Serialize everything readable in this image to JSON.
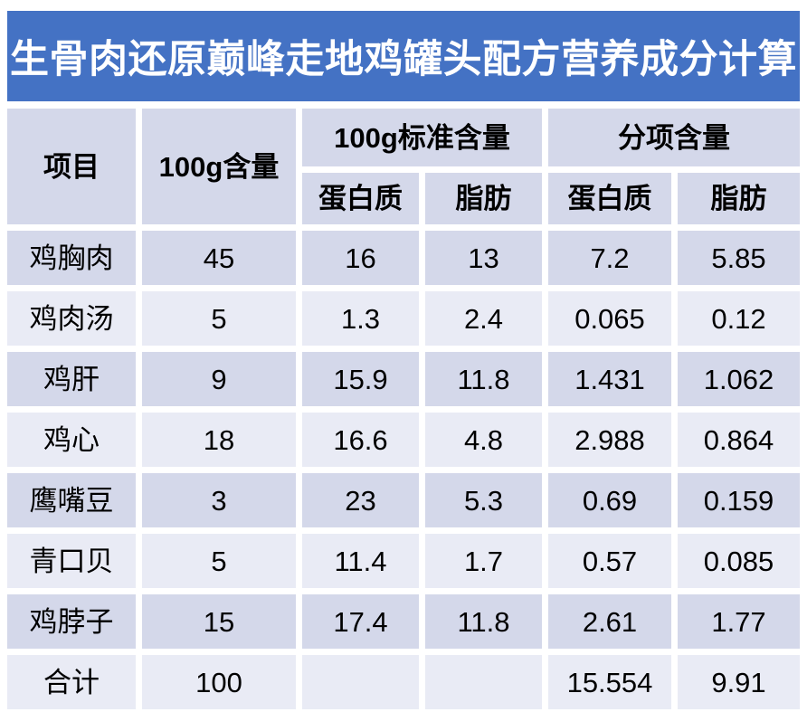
{
  "title": "生骨肉还原巅峰走地鸡罐头配方营养成分计算",
  "colors": {
    "banner": "#4472C4",
    "title_text": "#FFFFFF",
    "header_bg": "#D4D8EA",
    "row_odd_bg": "#D4D8EA",
    "row_even_bg": "#E9EBF5",
    "text": "#000000",
    "gap": "#FFFFFF"
  },
  "table": {
    "columns": {
      "item": "项目",
      "per100g": "100g含量",
      "group_standard": "100g标准含量",
      "group_component": "分项含量",
      "protein": "蛋白质",
      "fat": "脂肪"
    },
    "rows": [
      {
        "label": "鸡胸肉",
        "values": [
          "45",
          "16",
          "13",
          "7.2",
          "5.85"
        ]
      },
      {
        "label": "鸡肉汤",
        "values": [
          "5",
          "1.3",
          "2.4",
          "0.065",
          "0.12"
        ]
      },
      {
        "label": "鸡肝",
        "values": [
          "9",
          "15.9",
          "11.8",
          "1.431",
          "1.062"
        ]
      },
      {
        "label": "鸡心",
        "values": [
          "18",
          "16.6",
          "4.8",
          "2.988",
          "0.864"
        ]
      },
      {
        "label": "鹰嘴豆",
        "values": [
          "3",
          "23",
          "5.3",
          "0.69",
          "0.159"
        ]
      },
      {
        "label": "青口贝",
        "values": [
          "5",
          "11.4",
          "1.7",
          "0.57",
          "0.085"
        ]
      },
      {
        "label": "鸡脖子",
        "values": [
          "15",
          "17.4",
          "11.8",
          "2.61",
          "1.77"
        ]
      },
      {
        "label": "合计",
        "values": [
          "100",
          "",
          "",
          "15.554",
          "9.91"
        ]
      }
    ]
  },
  "chart_data": {
    "type": "table",
    "title": "生骨肉还原巅峰走地鸡罐头配方营养成分计算",
    "header_groups": [
      {
        "label": "项目",
        "colspan": 1,
        "rowspan": 2
      },
      {
        "label": "100g含量",
        "colspan": 1,
        "rowspan": 2
      },
      {
        "label": "100g标准含量",
        "colspan": 2,
        "children": [
          "蛋白质",
          "脂肪"
        ]
      },
      {
        "label": "分项含量",
        "colspan": 2,
        "children": [
          "蛋白质",
          "脂肪"
        ]
      }
    ],
    "columns": [
      "项目",
      "100g含量",
      "100g标准含量-蛋白质",
      "100g标准含量-脂肪",
      "分项含量-蛋白质",
      "分项含量-脂肪"
    ],
    "rows": [
      [
        "鸡胸肉",
        45,
        16,
        13,
        7.2,
        5.85
      ],
      [
        "鸡肉汤",
        5,
        1.3,
        2.4,
        0.065,
        0.12
      ],
      [
        "鸡肝",
        9,
        15.9,
        11.8,
        1.431,
        1.062
      ],
      [
        "鸡心",
        18,
        16.6,
        4.8,
        2.988,
        0.864
      ],
      [
        "鹰嘴豆",
        3,
        23,
        5.3,
        0.69,
        0.159
      ],
      [
        "青口贝",
        5,
        11.4,
        1.7,
        0.57,
        0.085
      ],
      [
        "鸡脖子",
        15,
        17.4,
        11.8,
        2.61,
        1.77
      ],
      [
        "合计",
        100,
        null,
        null,
        15.554,
        9.91
      ]
    ]
  }
}
